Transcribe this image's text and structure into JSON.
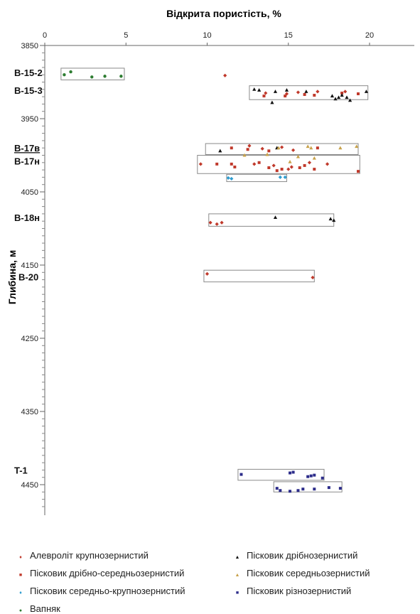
{
  "chart_data": {
    "type": "scatter",
    "title": "",
    "xlabel": "Відкрита пористість, %",
    "ylabel": "Глибина, м",
    "xlim": [
      0,
      25
    ],
    "ylim": [
      3850,
      4480
    ],
    "x_ticks": [
      "0",
      "5",
      "10",
      "15",
      "20"
    ],
    "y_ticks": [
      "3850",
      "3950",
      "4050",
      "4150",
      "4250",
      "4350",
      "4450"
    ],
    "x_axis_position": "top",
    "y_axis_reversed": true,
    "legend_position": "bottom",
    "well_labels": [
      {
        "label": "B-15-2",
        "depth": 3887,
        "underline": false
      },
      {
        "label": "B-15-3",
        "depth": 3911,
        "underline": false
      },
      {
        "label": "B-17в",
        "depth": 3990,
        "underline": true
      },
      {
        "label": "B-17н",
        "depth": 4008,
        "underline": false
      },
      {
        "label": "B-18н",
        "depth": 4085,
        "underline": false
      },
      {
        "label": "T-1",
        "depth": 4430,
        "underline": false
      },
      {
        "label": "B-20",
        "depth": 4166,
        "underline": false
      }
    ],
    "boxes": [
      {
        "x0": 1.0,
        "x1": 4.9,
        "y0": 3881,
        "y1": 3897
      },
      {
        "x0": 12.6,
        "x1": 19.9,
        "y0": 3905,
        "y1": 3924
      },
      {
        "x0": 9.9,
        "x1": 19.3,
        "y0": 3984,
        "y1": 3999
      },
      {
        "x0": 9.4,
        "x1": 19.4,
        "y0": 4000,
        "y1": 4025
      },
      {
        "x0": 11.2,
        "x1": 14.9,
        "y0": 4026,
        "y1": 4036
      },
      {
        "x0": 10.1,
        "x1": 17.8,
        "y0": 4080,
        "y1": 4097
      },
      {
        "x0": 9.8,
        "x1": 16.6,
        "y0": 4157,
        "y1": 4173
      },
      {
        "x0": 11.9,
        "x1": 17.2,
        "y0": 4429,
        "y1": 4444
      },
      {
        "x0": 14.1,
        "x1": 18.3,
        "y0": 4446,
        "y1": 4460
      }
    ],
    "series": [
      {
        "name": "Алевроліт крупнозернистий",
        "marker": "diamond",
        "color": "#c0392b",
        "x": [
          11.1,
          13.6,
          14.9,
          15.6,
          16.8,
          18.5,
          12.6,
          13.4,
          14.6,
          15.3,
          9.6,
          12.9,
          14.1,
          15.2,
          16.3,
          17.4,
          15.0,
          10.2,
          10.6,
          10.9,
          10.0,
          16.5
        ],
        "y": [
          3891,
          3915,
          3916,
          3914,
          3913,
          3913,
          3987,
          3991,
          3989,
          3993,
          4012,
          4012,
          4014,
          4016,
          4010,
          4012,
          4019,
          4092,
          4094,
          4092,
          4162,
          4167
        ]
      },
      {
        "name": "Пісковик дрібно-середньозернистий",
        "marker": "square",
        "color": "#c0392b",
        "x": [
          13.5,
          14.8,
          16.0,
          16.6,
          18.3,
          19.3,
          11.5,
          12.5,
          13.8,
          16.8,
          10.6,
          11.5,
          11.7,
          13.2,
          13.8,
          14.6,
          14.3,
          15.7,
          16.0,
          16.6,
          19.3
        ],
        "y": [
          3919,
          3919,
          3917,
          3918,
          3915,
          3916,
          3990,
          3992,
          3994,
          3990,
          4012,
          4012,
          4016,
          4010,
          4017,
          4019,
          4021,
          4017,
          4014,
          4019,
          4022
        ]
      },
      {
        "name": "Пісковик середньо-крупнозернистий",
        "marker": "diamond",
        "color": "#2e9ccf",
        "x": [
          11.3,
          11.5,
          14.5,
          14.8
        ],
        "y": [
          4031,
          4032,
          4030,
          4030
        ]
      },
      {
        "name": "Вапняк",
        "marker": "circle",
        "color": "#2e7d32",
        "x": [
          1.2,
          1.6,
          2.9,
          3.7,
          4.7
        ],
        "y": [
          3890,
          3886,
          3893,
          3892,
          3892
        ]
      },
      {
        "name": "Пісковик дрібнозернистий",
        "marker": "triangle",
        "color": "#111111",
        "x": [
          12.9,
          13.2,
          14.2,
          14.9,
          16.1,
          17.7,
          17.9,
          18.1,
          18.3,
          18.6,
          18.8,
          19.8,
          14.0,
          10.8,
          14.3,
          14.2,
          17.6,
          17.8
        ],
        "y": [
          3910,
          3911,
          3913,
          3911,
          3913,
          3919,
          3923,
          3921,
          3918,
          3921,
          3925,
          3913,
          3928,
          3994,
          3990,
          4085,
          4087,
          4089
        ]
      },
      {
        "name": "Пісковик середньозернистий",
        "marker": "triangle",
        "color": "#c8a24a",
        "x": [
          14.4,
          16.2,
          16.4,
          18.2,
          19.2,
          12.3,
          13.7,
          15.6,
          16.6,
          15.1
        ],
        "y": [
          3990,
          3988,
          3990,
          3990,
          3988,
          4000,
          3999,
          4002,
          4004,
          4009
        ]
      },
      {
        "name": "Пісковик різнозернистий",
        "marker": "square",
        "color": "#2c2c8a",
        "x": [
          12.1,
          15.1,
          15.3,
          16.2,
          16.4,
          16.6,
          17.1,
          14.3,
          14.5,
          15.1,
          15.6,
          15.9,
          16.6,
          17.5,
          18.2
        ],
        "y": [
          4436,
          4434,
          4433,
          4439,
          4438,
          4437,
          4441,
          4455,
          4458,
          4459,
          4458,
          4456,
          4456,
          4454,
          4455
        ]
      }
    ]
  },
  "legend": {
    "items": [
      {
        "label": "Алевроліт крупнозернистий",
        "glyph": "♦",
        "color": "#c0392b"
      },
      {
        "label": "Пісковик дрібнозернистий",
        "glyph": "▲",
        "color": "#111111"
      },
      {
        "label": "Пісковик дрібно-середньозернистий",
        "glyph": "■",
        "color": "#c0392b"
      },
      {
        "label": "Пісковик середньозернистий",
        "glyph": "▲",
        "color": "#c8a24a"
      },
      {
        "label": "Пісковик середньо-крупнозернистий",
        "glyph": "♦",
        "color": "#2e9ccf"
      },
      {
        "label": "Пісковик різнозернистий",
        "glyph": "■",
        "color": "#2c2c8a"
      },
      {
        "label": "Вапняк",
        "glyph": "●",
        "color": "#2e7d32"
      }
    ]
  }
}
